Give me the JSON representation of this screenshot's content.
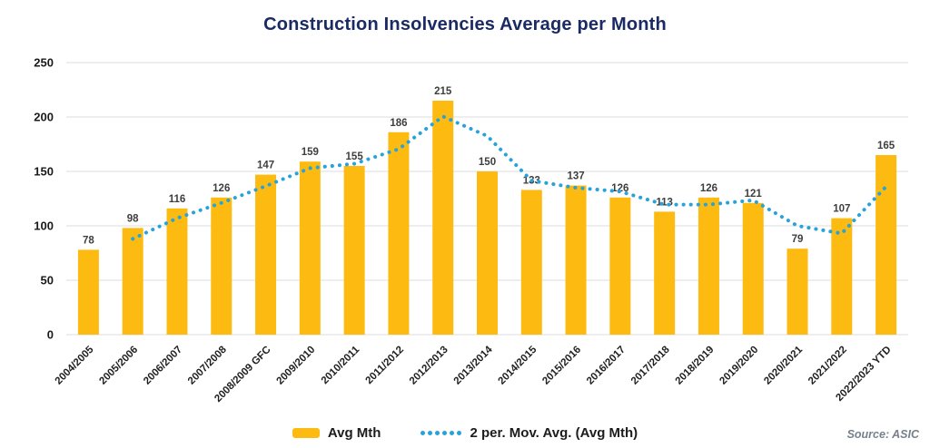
{
  "page": {
    "background": "#ffffff"
  },
  "chart": {
    "title": "Construction Insolvencies Average per Month",
    "source": "Source: ASIC",
    "colors": {
      "bar": "#fdbb11",
      "line": "#25a3da",
      "title": "#1a2a63",
      "grid": "#dcdcdc",
      "value_label": "#3e3e3e",
      "axis_text": "#1f1f1f",
      "source_text": "#76818d"
    },
    "legend": [
      {
        "swatch": "bar-swatch",
        "label": "Avg Mth"
      },
      {
        "swatch": "dotted-line-swatch",
        "label": "2 per. Mov. Avg. (Avg Mth)"
      }
    ]
  },
  "chart_data": {
    "type": "bar",
    "title": "Construction Insolvencies Average per Month",
    "categories": [
      "2004/2005",
      "2005/2006",
      "2006/2007",
      "2007/2008",
      "2008/2009 GFC",
      "2009/2010",
      "2010/2011",
      "2011/2012",
      "2012/2013",
      "2013/2014",
      "2014/2015",
      "2015/2016",
      "2016/2017",
      "2017/2018",
      "2018/2019",
      "2019/2020",
      "2020/2021",
      "2021/2022",
      "2022/2023 YTD"
    ],
    "series": [
      {
        "name": "Avg Mth",
        "type": "bar",
        "values": [
          78,
          98,
          116,
          126,
          147,
          159,
          155,
          186,
          215,
          150,
          133,
          137,
          126,
          113,
          126,
          121,
          79,
          107,
          165
        ]
      },
      {
        "name": "2 per. Mov. Avg. (Avg Mth)",
        "type": "line-dotted",
        "window": 2,
        "values": [
          null,
          88,
          107,
          121,
          136.5,
          153,
          157,
          170.5,
          200.5,
          182.5,
          141.5,
          135,
          131.5,
          119.5,
          119.5,
          123.5,
          100,
          93,
          136
        ]
      }
    ],
    "xlabel": "",
    "ylabel": "",
    "ylim": [
      0,
      250
    ],
    "yticks": [
      0,
      50,
      100,
      150,
      200,
      250
    ],
    "grid": true,
    "legend_position": "bottom",
    "x_tick_rotation": -45
  }
}
